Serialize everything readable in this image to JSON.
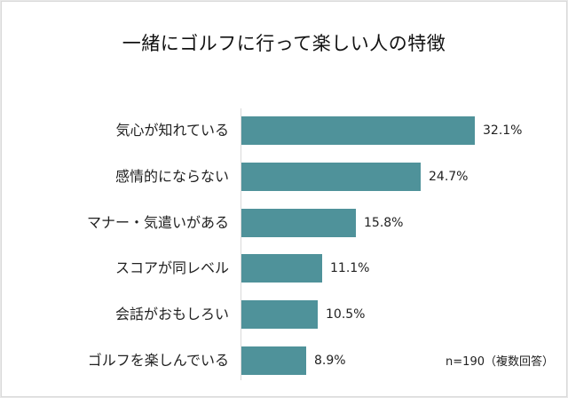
{
  "chart_data": {
    "type": "bar",
    "orientation": "horizontal",
    "title": "一緒にゴルフに行って楽しい人の特徴",
    "categories": [
      "気心が知れている",
      "感情的にならない",
      "マナー・気遣いがある",
      "スコアが同レベル",
      "会話がおもしろい",
      "ゴルフを楽しんでいる"
    ],
    "values": [
      32.1,
      24.7,
      15.8,
      11.1,
      10.5,
      8.9
    ],
    "value_labels": [
      "32.1%",
      "24.7%",
      "15.8%",
      "11.1%",
      "10.5%",
      "8.9%"
    ],
    "xlabel": "",
    "ylabel": "",
    "unit": "%",
    "grid": false,
    "legend": false,
    "bar_color": "#4f929a",
    "note": "n=190（複数回答）"
  }
}
